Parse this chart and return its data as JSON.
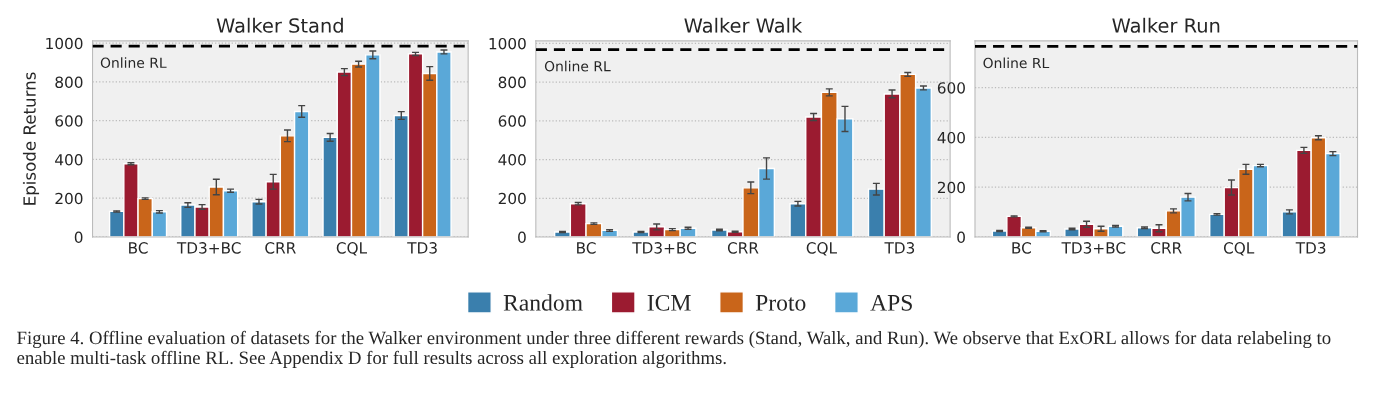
{
  "chart_data": [
    {
      "type": "bar",
      "title": "Walker Stand",
      "ylabel": "Episode Returns",
      "categories": [
        "BC",
        "TD3+BC",
        "CRR",
        "CQL",
        "TD3"
      ],
      "ylim": [
        0,
        1012
      ],
      "yticks": [
        0,
        200,
        400,
        600,
        800,
        1000
      ],
      "grid": "y",
      "legend": "bottom",
      "series": [
        {
          "name": "Random",
          "color": "#3a7fad",
          "values": [
            132,
            165,
            182,
            514,
            627
          ],
          "errors": [
            3,
            12,
            12,
            20,
            20
          ]
        },
        {
          "name": "ICM",
          "color": "#9b1b30",
          "values": [
            378,
            155,
            285,
            851,
            945
          ],
          "errors": [
            5,
            12,
            38,
            18,
            8
          ]
        },
        {
          "name": "Proto",
          "color": "#c9651a",
          "values": [
            198,
            258,
            522,
            892,
            844
          ],
          "errors": [
            4,
            40,
            30,
            15,
            35
          ]
        },
        {
          "name": "APS",
          "color": "#5aa8d8",
          "values": [
            130,
            239,
            648,
            940,
            955
          ],
          "errors": [
            6,
            8,
            30,
            20,
            10
          ]
        }
      ],
      "ref_lines": [
        {
          "axis": "y",
          "value": 985,
          "label": "Online RL",
          "color": "#000000",
          "line_style": "dashed"
        }
      ]
    },
    {
      "type": "bar",
      "title": "Walker Walk",
      "categories": [
        "BC",
        "TD3+BC",
        "CRR",
        "CQL",
        "TD3"
      ],
      "ylim": [
        0,
        1013
      ],
      "yticks": [
        0,
        200,
        400,
        600,
        800,
        1000
      ],
      "grid": "y",
      "series": [
        {
          "color": "#3a7fad",
          "values": [
            26,
            26,
            36,
            172,
            247
          ],
          "errors": [
            3,
            3,
            4,
            12,
            30
          ]
        },
        {
          "color": "#9b1b30",
          "values": [
            172,
            52,
            27,
            620,
            739
          ],
          "errors": [
            6,
            15,
            3,
            18,
            20
          ]
        },
        {
          "color": "#c9651a",
          "values": [
            69,
            38,
            254,
            747,
            840
          ],
          "errors": [
            4,
            5,
            30,
            18,
            10
          ]
        },
        {
          "color": "#5aa8d8",
          "values": [
            34,
            45,
            354,
            610,
            770
          ],
          "errors": [
            4,
            5,
            55,
            65,
            10
          ]
        }
      ],
      "ref_lines": [
        {
          "axis": "y",
          "value": 968,
          "label": "Online RL",
          "color": "#000000",
          "line_style": "dashed"
        }
      ]
    },
    {
      "type": "bar",
      "title": "Walker Run",
      "categories": [
        "BC",
        "TD3+BC",
        "CRR",
        "CQL",
        "TD3"
      ],
      "ylim": [
        0,
        788
      ],
      "yticks": [
        0,
        200,
        400,
        600
      ],
      "grid": "y",
      "series": [
        {
          "color": "#3a7fad",
          "values": [
            24,
            32,
            37,
            91,
            101
          ],
          "errors": [
            2,
            3,
            3,
            3,
            8
          ]
        },
        {
          "color": "#9b1b30",
          "values": [
            83,
            51,
            35,
            199,
            348
          ],
          "errors": [
            2,
            12,
            14,
            30,
            12
          ]
        },
        {
          "color": "#c9651a",
          "values": [
            37,
            33,
            105,
            272,
            399
          ],
          "errors": [
            2,
            10,
            8,
            20,
            8
          ]
        },
        {
          "color": "#5aa8d8",
          "values": [
            23,
            43,
            160,
            287,
            335
          ],
          "errors": [
            2,
            3,
            15,
            5,
            8
          ]
        }
      ],
      "ref_lines": [
        {
          "axis": "y",
          "value": 766,
          "label": "Online RL",
          "color": "#000000",
          "line_style": "dashed"
        }
      ],
      "annotations": [
        "Figure 4. Offline evaluation of datasets for the Walker environment under three different rewards (Stand, Walk, and Run). We observe that ExORL allows for data relabeling to enable multi-task offline RL. See Appendix D for full results across all exploration algorithms."
      ]
    }
  ]
}
